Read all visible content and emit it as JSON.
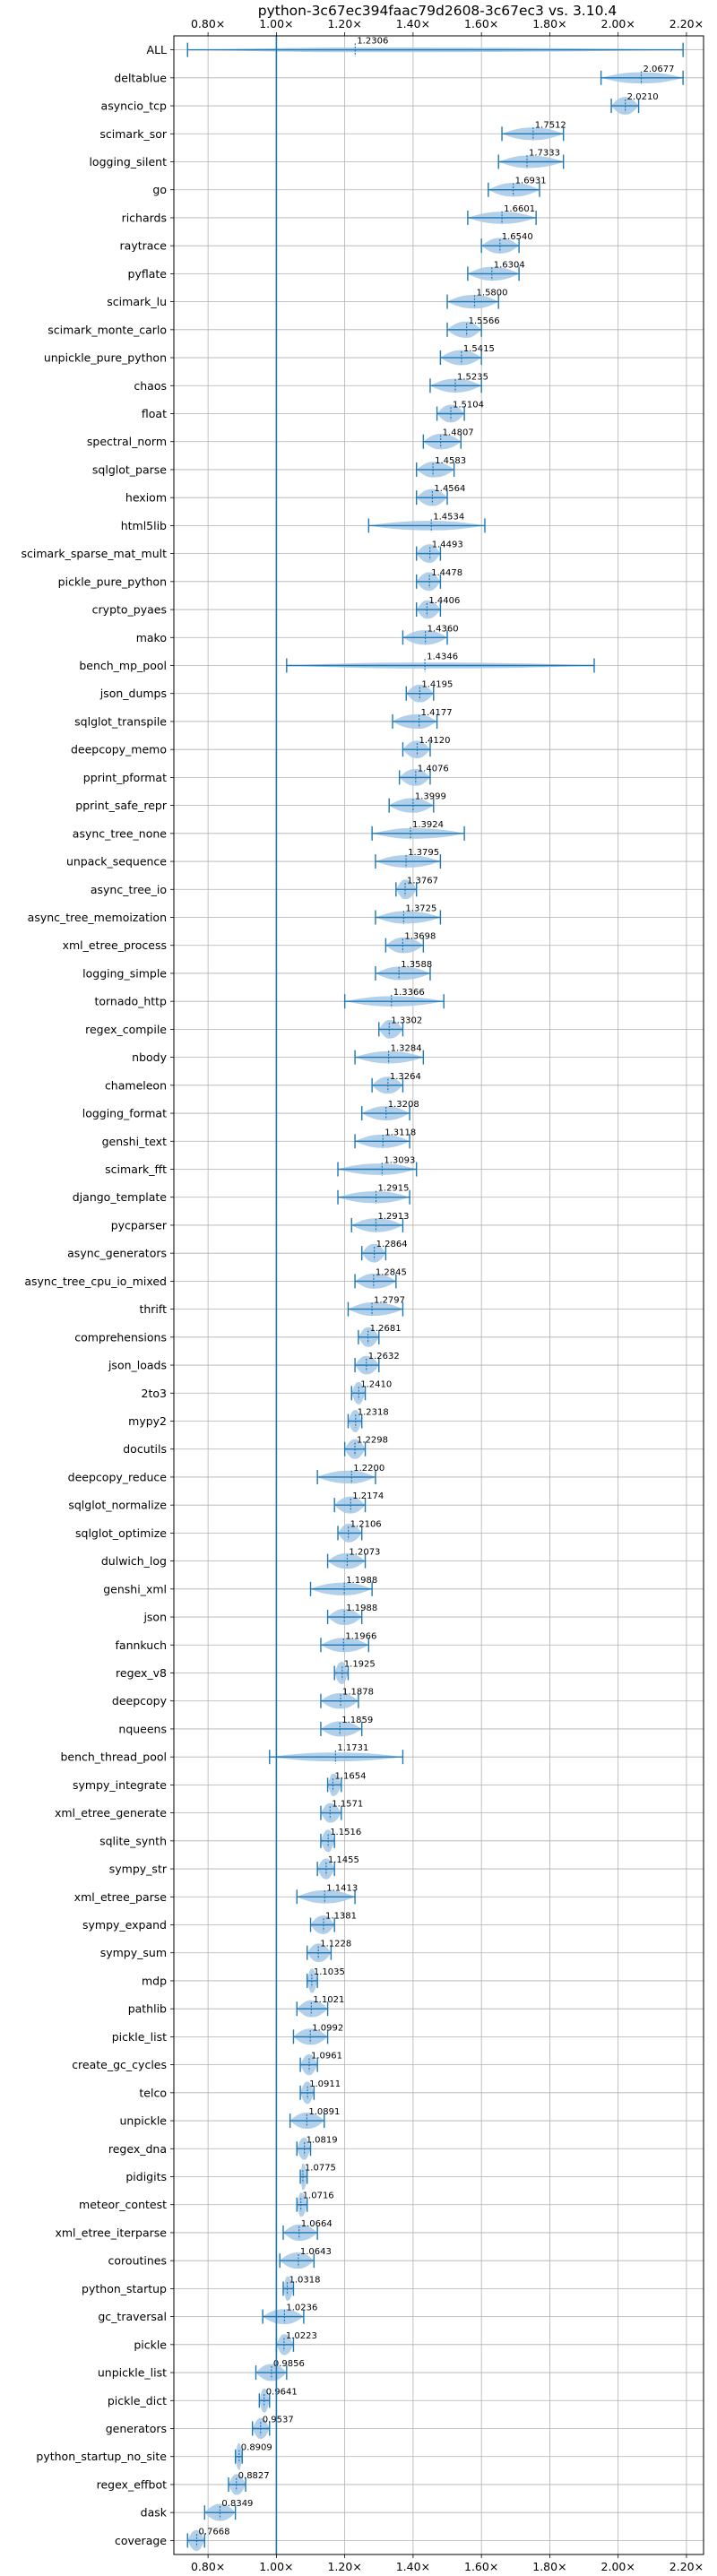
{
  "chart_data": {
    "type": "violin",
    "title": "python-3c67ec394faac79d2608-3c67ec3 vs. 3.10.4",
    "xlim": [
      0.7,
      2.25
    ],
    "xticks": [
      0.8,
      1.0,
      1.2,
      1.4,
      1.6,
      1.8,
      2.0,
      2.2
    ],
    "xtick_labels": [
      "0.80×",
      "1.00×",
      "1.20×",
      "1.40×",
      "1.60×",
      "1.80×",
      "2.00×",
      "2.20×"
    ],
    "reference_line": 1.0,
    "grid": true,
    "color": "#1f77b4",
    "fill_color": "#a6c8e6",
    "benchmarks": [
      {
        "name": "ALL",
        "value": 1.2306,
        "min": 0.74,
        "max": 2.19,
        "label": "1.2306"
      },
      {
        "name": "deltablue",
        "value": 2.0677,
        "min": 1.95,
        "max": 2.19,
        "label": "2.0677"
      },
      {
        "name": "asyncio_tcp",
        "value": 2.021,
        "min": 1.98,
        "max": 2.06,
        "label": "2.0210"
      },
      {
        "name": "scimark_sor",
        "value": 1.7512,
        "min": 1.66,
        "max": 1.84,
        "label": "1.7512"
      },
      {
        "name": "logging_silent",
        "value": 1.7333,
        "min": 1.65,
        "max": 1.84,
        "label": "1.7333"
      },
      {
        "name": "go",
        "value": 1.6931,
        "min": 1.62,
        "max": 1.77,
        "label": "1.6931"
      },
      {
        "name": "richards",
        "value": 1.6601,
        "min": 1.56,
        "max": 1.76,
        "label": "1.6601"
      },
      {
        "name": "raytrace",
        "value": 1.654,
        "min": 1.6,
        "max": 1.71,
        "label": "1.6540"
      },
      {
        "name": "pyflate",
        "value": 1.6304,
        "min": 1.56,
        "max": 1.71,
        "label": "1.6304"
      },
      {
        "name": "scimark_lu",
        "value": 1.58,
        "min": 1.5,
        "max": 1.65,
        "label": "1.5800"
      },
      {
        "name": "scimark_monte_carlo",
        "value": 1.5566,
        "min": 1.5,
        "max": 1.6,
        "label": "1.5566"
      },
      {
        "name": "unpickle_pure_python",
        "value": 1.5415,
        "min": 1.48,
        "max": 1.6,
        "label": "1.5415"
      },
      {
        "name": "chaos",
        "value": 1.5235,
        "min": 1.45,
        "max": 1.6,
        "label": "1.5235"
      },
      {
        "name": "float",
        "value": 1.5104,
        "min": 1.47,
        "max": 1.55,
        "label": "1.5104"
      },
      {
        "name": "spectral_norm",
        "value": 1.4807,
        "min": 1.43,
        "max": 1.54,
        "label": "1.4807"
      },
      {
        "name": "sqlglot_parse",
        "value": 1.4583,
        "min": 1.41,
        "max": 1.52,
        "label": "1.4583"
      },
      {
        "name": "hexiom",
        "value": 1.4564,
        "min": 1.41,
        "max": 1.5,
        "label": "1.4564"
      },
      {
        "name": "html5lib",
        "value": 1.4534,
        "min": 1.27,
        "max": 1.61,
        "label": "1.4534"
      },
      {
        "name": "scimark_sparse_mat_mult",
        "value": 1.4493,
        "min": 1.41,
        "max": 1.48,
        "label": "1.4493"
      },
      {
        "name": "pickle_pure_python",
        "value": 1.4478,
        "min": 1.41,
        "max": 1.48,
        "label": "1.4478"
      },
      {
        "name": "crypto_pyaes",
        "value": 1.4406,
        "min": 1.41,
        "max": 1.48,
        "label": "1.4406"
      },
      {
        "name": "mako",
        "value": 1.436,
        "min": 1.37,
        "max": 1.5,
        "label": "1.4360"
      },
      {
        "name": "bench_mp_pool",
        "value": 1.4346,
        "min": 1.03,
        "max": 1.93,
        "label": "1.4346"
      },
      {
        "name": "json_dumps",
        "value": 1.4195,
        "min": 1.38,
        "max": 1.46,
        "label": "1.4195"
      },
      {
        "name": "sqlglot_transpile",
        "value": 1.4177,
        "min": 1.34,
        "max": 1.47,
        "label": "1.4177"
      },
      {
        "name": "deepcopy_memo",
        "value": 1.412,
        "min": 1.37,
        "max": 1.45,
        "label": "1.4120"
      },
      {
        "name": "pprint_pformat",
        "value": 1.4076,
        "min": 1.36,
        "max": 1.45,
        "label": "1.4076"
      },
      {
        "name": "pprint_safe_repr",
        "value": 1.3999,
        "min": 1.33,
        "max": 1.46,
        "label": "1.3999"
      },
      {
        "name": "async_tree_none",
        "value": 1.3924,
        "min": 1.28,
        "max": 1.55,
        "label": "1.3924"
      },
      {
        "name": "unpack_sequence",
        "value": 1.3795,
        "min": 1.29,
        "max": 1.48,
        "label": "1.3795"
      },
      {
        "name": "async_tree_io",
        "value": 1.3767,
        "min": 1.35,
        "max": 1.41,
        "label": "1.3767"
      },
      {
        "name": "async_tree_memoization",
        "value": 1.3725,
        "min": 1.29,
        "max": 1.48,
        "label": "1.3725"
      },
      {
        "name": "xml_etree_process",
        "value": 1.3698,
        "min": 1.32,
        "max": 1.43,
        "label": "1.3698"
      },
      {
        "name": "logging_simple",
        "value": 1.3588,
        "min": 1.29,
        "max": 1.45,
        "label": "1.3588"
      },
      {
        "name": "tornado_http",
        "value": 1.3366,
        "min": 1.2,
        "max": 1.49,
        "label": "1.3366"
      },
      {
        "name": "regex_compile",
        "value": 1.3302,
        "min": 1.3,
        "max": 1.37,
        "label": "1.3302"
      },
      {
        "name": "nbody",
        "value": 1.3284,
        "min": 1.23,
        "max": 1.43,
        "label": "1.3284"
      },
      {
        "name": "chameleon",
        "value": 1.3264,
        "min": 1.28,
        "max": 1.37,
        "label": "1.3264"
      },
      {
        "name": "logging_format",
        "value": 1.3208,
        "min": 1.25,
        "max": 1.39,
        "label": "1.3208"
      },
      {
        "name": "genshi_text",
        "value": 1.3118,
        "min": 1.23,
        "max": 1.39,
        "label": "1.3118"
      },
      {
        "name": "scimark_fft",
        "value": 1.3093,
        "min": 1.18,
        "max": 1.41,
        "label": "1.3093"
      },
      {
        "name": "django_template",
        "value": 1.2915,
        "min": 1.18,
        "max": 1.39,
        "label": "1.2915"
      },
      {
        "name": "pycparser",
        "value": 1.2913,
        "min": 1.22,
        "max": 1.37,
        "label": "1.2913"
      },
      {
        "name": "async_generators",
        "value": 1.2864,
        "min": 1.25,
        "max": 1.32,
        "label": "1.2864"
      },
      {
        "name": "async_tree_cpu_io_mixed",
        "value": 1.2845,
        "min": 1.23,
        "max": 1.35,
        "label": "1.2845"
      },
      {
        "name": "thrift",
        "value": 1.2797,
        "min": 1.21,
        "max": 1.37,
        "label": "1.2797"
      },
      {
        "name": "comprehensions",
        "value": 1.2681,
        "min": 1.24,
        "max": 1.3,
        "label": "1.2681"
      },
      {
        "name": "json_loads",
        "value": 1.2632,
        "min": 1.23,
        "max": 1.3,
        "label": "1.2632"
      },
      {
        "name": "2to3",
        "value": 1.241,
        "min": 1.22,
        "max": 1.26,
        "label": "1.2410"
      },
      {
        "name": "mypy2",
        "value": 1.2318,
        "min": 1.21,
        "max": 1.25,
        "label": "1.2318"
      },
      {
        "name": "docutils",
        "value": 1.2298,
        "min": 1.2,
        "max": 1.26,
        "label": "1.2298"
      },
      {
        "name": "deepcopy_reduce",
        "value": 1.22,
        "min": 1.12,
        "max": 1.29,
        "label": "1.2200"
      },
      {
        "name": "sqlglot_normalize",
        "value": 1.2174,
        "min": 1.17,
        "max": 1.26,
        "label": "1.2174"
      },
      {
        "name": "sqlglot_optimize",
        "value": 1.2106,
        "min": 1.18,
        "max": 1.25,
        "label": "1.2106"
      },
      {
        "name": "dulwich_log",
        "value": 1.2073,
        "min": 1.15,
        "max": 1.26,
        "label": "1.2073"
      },
      {
        "name": "genshi_xml",
        "value": 1.1988,
        "min": 1.1,
        "max": 1.28,
        "label": "1.1988"
      },
      {
        "name": "json",
        "value": 1.1988,
        "min": 1.15,
        "max": 1.25,
        "label": "1.1988"
      },
      {
        "name": "fannkuch",
        "value": 1.1966,
        "min": 1.13,
        "max": 1.27,
        "label": "1.1966"
      },
      {
        "name": "regex_v8",
        "value": 1.1925,
        "min": 1.17,
        "max": 1.21,
        "label": "1.1925"
      },
      {
        "name": "deepcopy",
        "value": 1.1878,
        "min": 1.13,
        "max": 1.24,
        "label": "1.1878"
      },
      {
        "name": "nqueens",
        "value": 1.1859,
        "min": 1.13,
        "max": 1.25,
        "label": "1.1859"
      },
      {
        "name": "bench_thread_pool",
        "value": 1.1731,
        "min": 0.98,
        "max": 1.37,
        "label": "1.1731"
      },
      {
        "name": "sympy_integrate",
        "value": 1.1654,
        "min": 1.15,
        "max": 1.19,
        "label": "1.1654"
      },
      {
        "name": "xml_etree_generate",
        "value": 1.1571,
        "min": 1.13,
        "max": 1.19,
        "label": "1.1571"
      },
      {
        "name": "sqlite_synth",
        "value": 1.1516,
        "min": 1.13,
        "max": 1.17,
        "label": "1.1516"
      },
      {
        "name": "sympy_str",
        "value": 1.1455,
        "min": 1.12,
        "max": 1.17,
        "label": "1.1455"
      },
      {
        "name": "xml_etree_parse",
        "value": 1.1413,
        "min": 1.06,
        "max": 1.23,
        "label": "1.1413"
      },
      {
        "name": "sympy_expand",
        "value": 1.1381,
        "min": 1.1,
        "max": 1.17,
        "label": "1.1381"
      },
      {
        "name": "sympy_sum",
        "value": 1.1228,
        "min": 1.09,
        "max": 1.16,
        "label": "1.1228"
      },
      {
        "name": "mdp",
        "value": 1.1035,
        "min": 1.09,
        "max": 1.12,
        "label": "1.1035"
      },
      {
        "name": "pathlib",
        "value": 1.1021,
        "min": 1.06,
        "max": 1.15,
        "label": "1.1021"
      },
      {
        "name": "pickle_list",
        "value": 1.0992,
        "min": 1.05,
        "max": 1.15,
        "label": "1.0992"
      },
      {
        "name": "create_gc_cycles",
        "value": 1.0961,
        "min": 1.07,
        "max": 1.12,
        "label": "1.0961"
      },
      {
        "name": "telco",
        "value": 1.0911,
        "min": 1.07,
        "max": 1.11,
        "label": "1.0911"
      },
      {
        "name": "unpickle",
        "value": 1.0891,
        "min": 1.04,
        "max": 1.14,
        "label": "1.0891"
      },
      {
        "name": "regex_dna",
        "value": 1.0819,
        "min": 1.06,
        "max": 1.1,
        "label": "1.0819"
      },
      {
        "name": "pidigits",
        "value": 1.0775,
        "min": 1.07,
        "max": 1.09,
        "label": "1.0775"
      },
      {
        "name": "meteor_contest",
        "value": 1.0716,
        "min": 1.06,
        "max": 1.09,
        "label": "1.0716"
      },
      {
        "name": "xml_etree_iterparse",
        "value": 1.0664,
        "min": 1.02,
        "max": 1.12,
        "label": "1.0664"
      },
      {
        "name": "coroutines",
        "value": 1.0643,
        "min": 1.01,
        "max": 1.11,
        "label": "1.0643"
      },
      {
        "name": "python_startup",
        "value": 1.0318,
        "min": 1.02,
        "max": 1.05,
        "label": "1.0318"
      },
      {
        "name": "gc_traversal",
        "value": 1.0236,
        "min": 0.96,
        "max": 1.08,
        "label": "1.0236"
      },
      {
        "name": "pickle",
        "value": 1.0223,
        "min": 1.0,
        "max": 1.05,
        "label": "1.0223"
      },
      {
        "name": "unpickle_list",
        "value": 0.9856,
        "min": 0.94,
        "max": 1.03,
        "label": "0.9856"
      },
      {
        "name": "pickle_dict",
        "value": 0.9641,
        "min": 0.95,
        "max": 0.98,
        "label": "0.9641"
      },
      {
        "name": "generators",
        "value": 0.9537,
        "min": 0.93,
        "max": 0.98,
        "label": "0.9537"
      },
      {
        "name": "python_startup_no_site",
        "value": 0.8909,
        "min": 0.88,
        "max": 0.9,
        "label": "0.8909"
      },
      {
        "name": "regex_effbot",
        "value": 0.8827,
        "min": 0.86,
        "max": 0.91,
        "label": "0.8827"
      },
      {
        "name": "dask",
        "value": 0.8349,
        "min": 0.79,
        "max": 0.88,
        "label": "0.8349"
      },
      {
        "name": "coverage",
        "value": 0.7668,
        "min": 0.74,
        "max": 0.79,
        "label": "0.7668"
      }
    ]
  }
}
